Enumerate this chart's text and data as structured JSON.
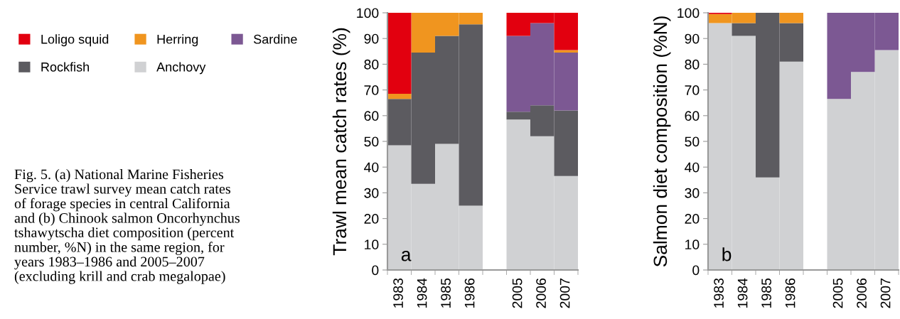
{
  "chart_data": [
    {
      "type": "bar",
      "stacked": true,
      "ylabel": "Trawl mean catch rates (%)",
      "categories": [
        "1983",
        "1984",
        "1985",
        "1986",
        null,
        "2005",
        "2006",
        "2007"
      ],
      "series": [
        {
          "name": "Anchovy",
          "color": "#d0d1d3",
          "values": [
            48.5,
            33.5,
            49,
            25,
            null,
            58.5,
            52,
            36.5
          ]
        },
        {
          "name": "Rockfish",
          "color": "#5c5b60",
          "values": [
            18,
            51,
            42,
            70.5,
            null,
            3,
            12,
            25.5
          ]
        },
        {
          "name": "Sardine",
          "color": "#7c5893",
          "values": [
            0,
            0,
            0,
            0,
            null,
            29.5,
            32,
            22.5
          ]
        },
        {
          "name": "Herring",
          "color": "#f0951f",
          "values": [
            2,
            15.5,
            9,
            4.5,
            null,
            0,
            0,
            1
          ]
        },
        {
          "name": "Loligo squid",
          "color": "#e2000f",
          "values": [
            31.5,
            0,
            0,
            0,
            null,
            9,
            4,
            14.5
          ]
        }
      ],
      "ylim": [
        0,
        100
      ],
      "yticks": [
        0,
        10,
        20,
        30,
        40,
        50,
        60,
        70,
        80,
        90,
        100
      ],
      "grid": false,
      "legend": "left",
      "annotations": [
        "a",
        "Fig. 5. (a) National Marine Fisheries\nService trawl survey mean catch rates\nof forage species in central California\nand (b) Chinook salmon Oncorhynchus\ntshawytscha diet composition (percent\nnumber, %N) in the same region, for\nyears 1983–1986 and 2005–2007\n(excluding krill and crab megalopae)"
      ]
    },
    {
      "type": "bar",
      "stacked": true,
      "ylabel": "Salmon diet composition (%N)",
      "categories": [
        "1983",
        "1984",
        "1985",
        "1986",
        null,
        "2005",
        "2006",
        "2007"
      ],
      "series": [
        {
          "color": "#d0d1d3",
          "values": [
            96,
            91,
            36,
            81,
            null,
            66.5,
            77,
            85.5
          ]
        },
        {
          "color": "#5c5b60",
          "values": [
            0,
            5,
            64,
            15,
            null,
            0,
            0,
            0
          ]
        },
        {
          "color": "#7c5893",
          "values": [
            0,
            0,
            0,
            0,
            null,
            33.5,
            23,
            14.5
          ]
        },
        {
          "color": "#f0951f",
          "values": [
            3.5,
            4,
            0,
            4,
            null,
            0,
            0,
            0
          ]
        },
        {
          "color": "#e2000f",
          "values": [
            0.5,
            0,
            0,
            0,
            null,
            0,
            0,
            0
          ]
        }
      ],
      "ylim": [
        0,
        100
      ],
      "yticks": [
        0,
        10,
        20,
        30,
        40,
        50,
        60,
        70,
        80,
        90,
        100
      ],
      "grid": false,
      "legend": false,
      "annotations": [
        "b"
      ]
    }
  ]
}
